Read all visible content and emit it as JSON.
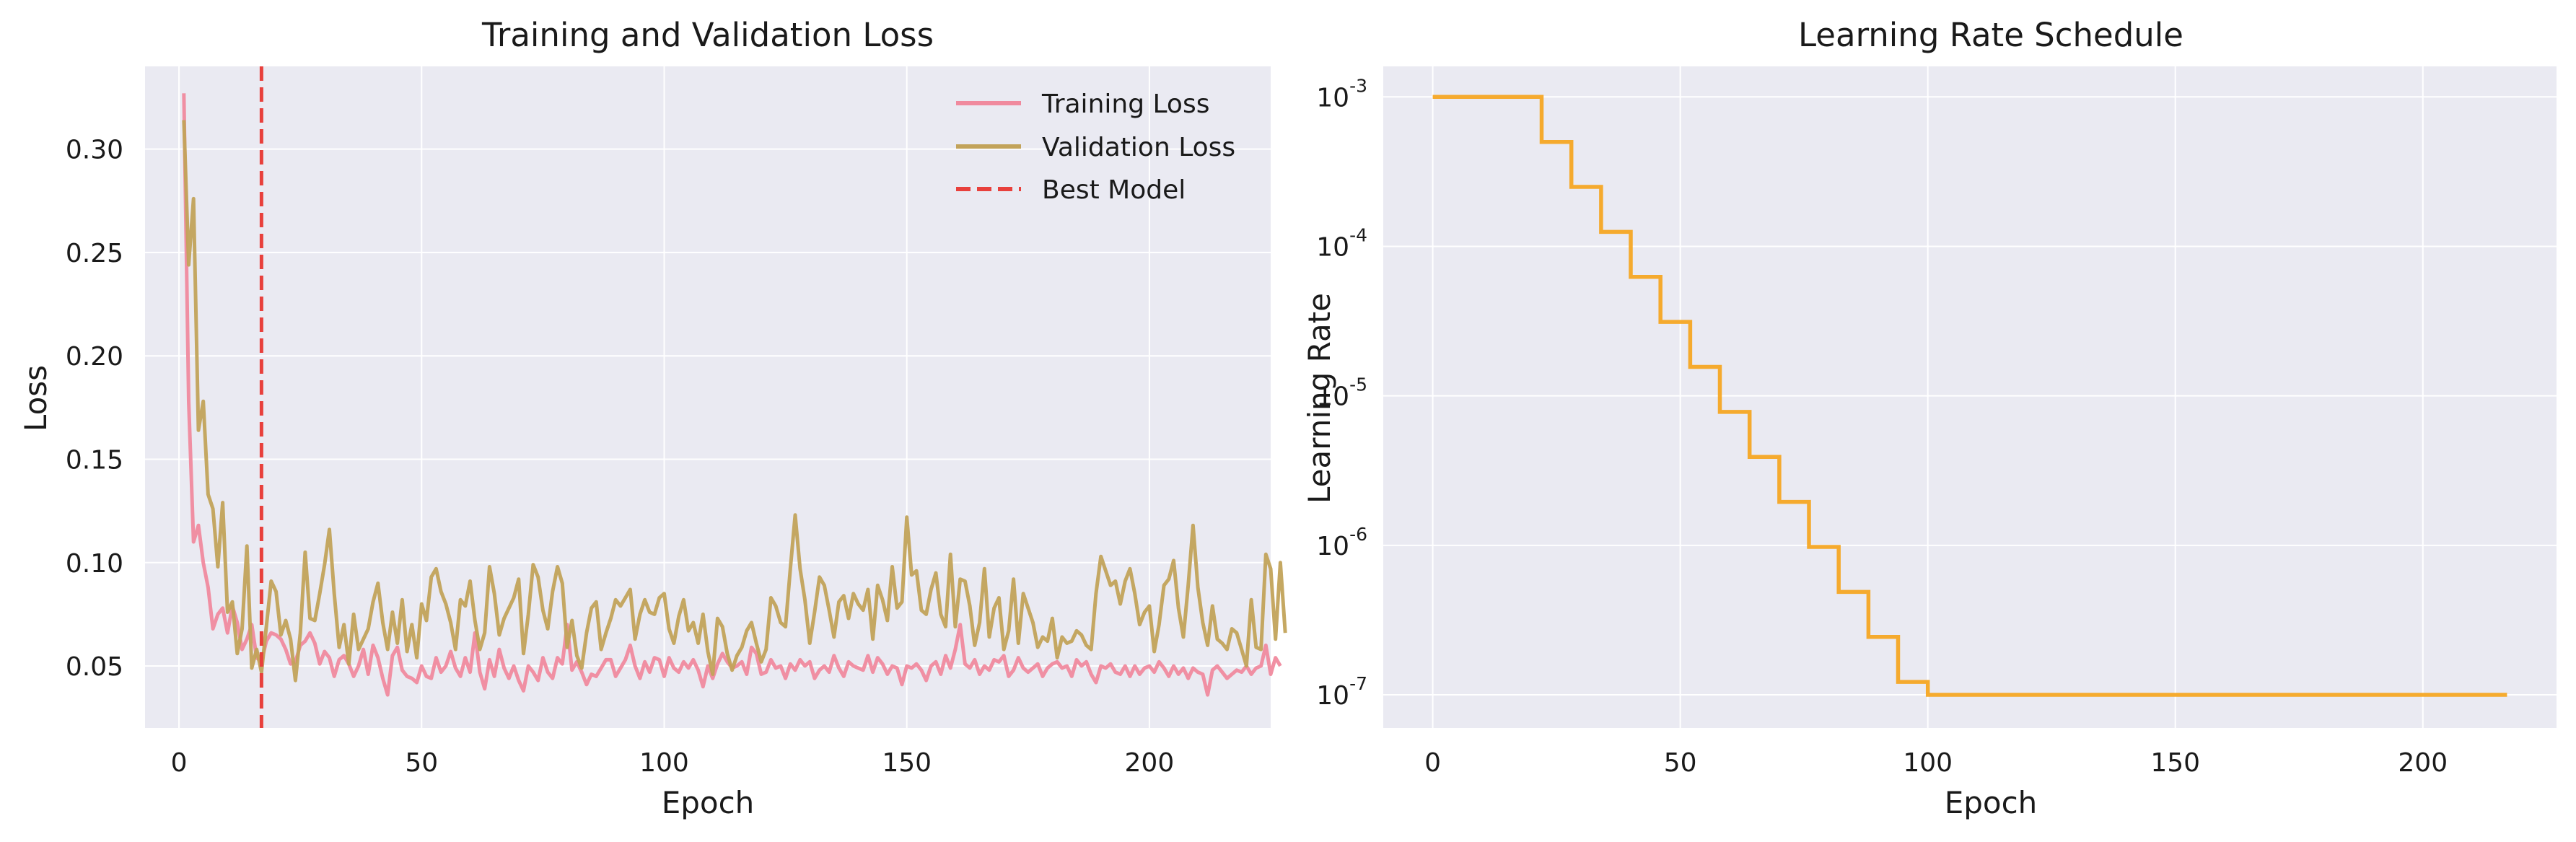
{
  "chart_data": [
    {
      "type": "line",
      "title": "Training and Validation Loss",
      "xlabel": "Epoch",
      "ylabel": "Loss",
      "xlim": [
        -7,
        225
      ],
      "ylim": [
        0.02,
        0.34
      ],
      "xticks": [
        0,
        50,
        100,
        150,
        200
      ],
      "yticks": [
        0.05,
        0.1,
        0.15,
        0.2,
        0.25,
        0.3
      ],
      "ytick_labels": [
        "0.05",
        "0.10",
        "0.15",
        "0.20",
        "0.25",
        "0.30"
      ],
      "grid": true,
      "legend_position": "top-right",
      "series": [
        {
          "name": "Training Loss",
          "color": "#f08a9e",
          "x_start": 1,
          "values": [
            0.327,
            0.178,
            0.11,
            0.118,
            0.1,
            0.088,
            0.068,
            0.075,
            0.078,
            0.066,
            0.079,
            0.071,
            0.058,
            0.063,
            0.07,
            0.054,
            0.052,
            0.062,
            0.066,
            0.065,
            0.063,
            0.058,
            0.051,
            0.052,
            0.06,
            0.062,
            0.066,
            0.061,
            0.051,
            0.057,
            0.054,
            0.045,
            0.053,
            0.055,
            0.051,
            0.045,
            0.05,
            0.058,
            0.046,
            0.06,
            0.054,
            0.044,
            0.036,
            0.055,
            0.059,
            0.048,
            0.045,
            0.044,
            0.042,
            0.05,
            0.045,
            0.044,
            0.054,
            0.047,
            0.05,
            0.057,
            0.049,
            0.045,
            0.054,
            0.047,
            0.066,
            0.047,
            0.039,
            0.053,
            0.045,
            0.058,
            0.049,
            0.044,
            0.05,
            0.043,
            0.038,
            0.05,
            0.047,
            0.043,
            0.054,
            0.047,
            0.044,
            0.054,
            0.051,
            0.07,
            0.048,
            0.052,
            0.047,
            0.041,
            0.046,
            0.045,
            0.049,
            0.053,
            0.053,
            0.045,
            0.049,
            0.053,
            0.06,
            0.05,
            0.044,
            0.052,
            0.047,
            0.054,
            0.053,
            0.045,
            0.054,
            0.049,
            0.047,
            0.052,
            0.049,
            0.053,
            0.048,
            0.04,
            0.05,
            0.044,
            0.051,
            0.056,
            0.052,
            0.049,
            0.05,
            0.052,
            0.046,
            0.059,
            0.056,
            0.046,
            0.047,
            0.053,
            0.049,
            0.05,
            0.044,
            0.051,
            0.048,
            0.053,
            0.05,
            0.052,
            0.044,
            0.048,
            0.05,
            0.047,
            0.055,
            0.049,
            0.045,
            0.052,
            0.05,
            0.049,
            0.048,
            0.055,
            0.047,
            0.054,
            0.051,
            0.046,
            0.05,
            0.049,
            0.041,
            0.05,
            0.049,
            0.051,
            0.048,
            0.043,
            0.05,
            0.052,
            0.046,
            0.055,
            0.049,
            0.058,
            0.07,
            0.051,
            0.049,
            0.053,
            0.046,
            0.05,
            0.048,
            0.053,
            0.052,
            0.055,
            0.045,
            0.048,
            0.054,
            0.049,
            0.047,
            0.049,
            0.051,
            0.045,
            0.049,
            0.051,
            0.052,
            0.049,
            0.05,
            0.045,
            0.053,
            0.05,
            0.052,
            0.046,
            0.042,
            0.05,
            0.049,
            0.051,
            0.047,
            0.046,
            0.05,
            0.045,
            0.05,
            0.046,
            0.049,
            0.05,
            0.047,
            0.052,
            0.049,
            0.045,
            0.05,
            0.046,
            0.049,
            0.044,
            0.049,
            0.047,
            0.046,
            0.036,
            0.048,
            0.05,
            0.047,
            0.044,
            0.046,
            0.048,
            0.047,
            0.05,
            0.046,
            0.049,
            0.05,
            0.06,
            0.046,
            0.054,
            0.05
          ]
        },
        {
          "name": "Validation Loss",
          "color": "#c2a35a",
          "x_start": 1,
          "values": [
            0.314,
            0.244,
            0.276,
            0.164,
            0.178,
            0.133,
            0.126,
            0.098,
            0.129,
            0.076,
            0.081,
            0.056,
            0.068,
            0.108,
            0.049,
            0.058,
            0.047,
            0.069,
            0.091,
            0.086,
            0.065,
            0.072,
            0.063,
            0.043,
            0.066,
            0.105,
            0.073,
            0.072,
            0.085,
            0.099,
            0.116,
            0.085,
            0.059,
            0.07,
            0.051,
            0.075,
            0.058,
            0.063,
            0.068,
            0.081,
            0.09,
            0.071,
            0.058,
            0.076,
            0.061,
            0.082,
            0.057,
            0.07,
            0.054,
            0.08,
            0.072,
            0.093,
            0.097,
            0.086,
            0.08,
            0.071,
            0.058,
            0.082,
            0.079,
            0.091,
            0.072,
            0.058,
            0.066,
            0.098,
            0.085,
            0.065,
            0.073,
            0.078,
            0.083,
            0.092,
            0.056,
            0.075,
            0.099,
            0.093,
            0.077,
            0.068,
            0.086,
            0.098,
            0.09,
            0.059,
            0.072,
            0.055,
            0.049,
            0.066,
            0.078,
            0.081,
            0.058,
            0.066,
            0.073,
            0.082,
            0.079,
            0.083,
            0.087,
            0.063,
            0.075,
            0.082,
            0.076,
            0.075,
            0.083,
            0.085,
            0.068,
            0.061,
            0.074,
            0.082,
            0.067,
            0.071,
            0.061,
            0.075,
            0.057,
            0.046,
            0.073,
            0.069,
            0.056,
            0.048,
            0.055,
            0.059,
            0.067,
            0.071,
            0.061,
            0.052,
            0.058,
            0.083,
            0.079,
            0.071,
            0.069,
            0.097,
            0.123,
            0.097,
            0.082,
            0.061,
            0.076,
            0.093,
            0.089,
            0.077,
            0.064,
            0.081,
            0.084,
            0.073,
            0.085,
            0.08,
            0.077,
            0.087,
            0.063,
            0.089,
            0.082,
            0.072,
            0.098,
            0.078,
            0.081,
            0.122,
            0.094,
            0.096,
            0.077,
            0.075,
            0.087,
            0.095,
            0.075,
            0.069,
            0.104,
            0.069,
            0.092,
            0.091,
            0.079,
            0.06,
            0.071,
            0.097,
            0.064,
            0.078,
            0.083,
            0.058,
            0.067,
            0.092,
            0.061,
            0.085,
            0.078,
            0.071,
            0.059,
            0.064,
            0.062,
            0.073,
            0.054,
            0.064,
            0.061,
            0.062,
            0.067,
            0.065,
            0.06,
            0.058,
            0.085,
            0.103,
            0.096,
            0.089,
            0.091,
            0.08,
            0.091,
            0.097,
            0.085,
            0.07,
            0.076,
            0.079,
            0.057,
            0.07,
            0.089,
            0.092,
            0.101,
            0.078,
            0.064,
            0.089,
            0.118,
            0.088,
            0.071,
            0.06,
            0.079,
            0.063,
            0.061,
            0.058,
            0.068,
            0.066,
            0.058,
            0.05,
            0.082,
            0.059,
            0.058,
            0.104,
            0.097,
            0.063,
            0.1,
            0.066
          ]
        }
      ],
      "best_model": {
        "name": "Best Model",
        "epoch": 17,
        "color": "#e8403c"
      }
    },
    {
      "type": "line",
      "title": "Learning Rate Schedule",
      "xlabel": "Epoch",
      "ylabel": "Learning Rate",
      "y_scale": "log",
      "xlim": [
        -10,
        227
      ],
      "ylim": [
        6e-08,
        0.0016
      ],
      "xticks": [
        0,
        50,
        100,
        150,
        200
      ],
      "yticks_exponents": [
        -3,
        -4,
        -5,
        -6,
        -7
      ],
      "ytick_base": "10",
      "grid": true,
      "series": [
        {
          "color": "#f5a623",
          "x": [
            0,
            22,
            22,
            28,
            28,
            34,
            34,
            40,
            40,
            46,
            46,
            52,
            52,
            58,
            58,
            64,
            64,
            70,
            70,
            76,
            76,
            82,
            82,
            88,
            88,
            94,
            94,
            100,
            100,
            217
          ],
          "values": [
            0.001,
            0.001,
            0.0005,
            0.0005,
            0.00025,
            0.00025,
            0.000125,
            0.000125,
            6.25e-05,
            6.25e-05,
            3.125e-05,
            3.125e-05,
            1.5625e-05,
            1.5625e-05,
            7.8125e-06,
            7.8125e-06,
            3.90625e-06,
            3.90625e-06,
            1.953125e-06,
            1.953125e-06,
            9.765625e-07,
            9.765625e-07,
            4.8828125e-07,
            4.8828125e-07,
            2.44140625e-07,
            2.44140625e-07,
            1.220703125e-07,
            1.220703125e-07,
            1e-07,
            1e-07
          ]
        }
      ]
    }
  ]
}
